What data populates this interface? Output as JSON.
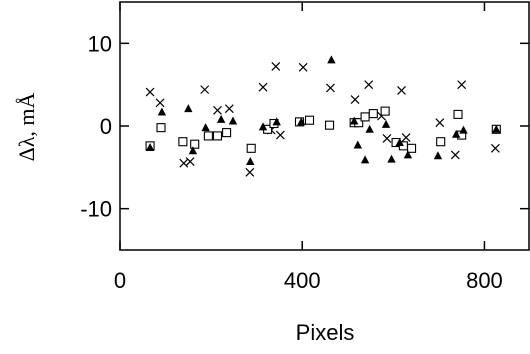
{
  "chart_data": {
    "type": "scatter",
    "title": "",
    "xlabel": "Pixels",
    "ylabel": "Δλ,  mÅ",
    "xlim": [
      0,
      900
    ],
    "ylim": [
      -15,
      15
    ],
    "xticks": [
      0,
      400,
      800
    ],
    "yticks": [
      -10,
      0,
      10
    ],
    "xtick_labels": [
      "0",
      "400",
      "800"
    ],
    "ytick_labels": [
      "-10",
      "0",
      "10"
    ],
    "grid": false,
    "series": [
      {
        "marker": "cross",
        "points": [
          [
            66,
            4.1
          ],
          [
            88,
            2.8
          ],
          [
            140,
            -4.5
          ],
          [
            154,
            -4.3
          ],
          [
            186,
            4.4
          ],
          [
            214,
            1.9
          ],
          [
            240,
            2.1
          ],
          [
            285,
            -5.6
          ],
          [
            314,
            4.7
          ],
          [
            342,
            7.2
          ],
          [
            332,
            -0.5
          ],
          [
            352,
            -1.1
          ],
          [
            402,
            7.1
          ],
          [
            462,
            4.6
          ],
          [
            516,
            3.2
          ],
          [
            546,
            5.0
          ],
          [
            574,
            1.2
          ],
          [
            586,
            -1.5
          ],
          [
            618,
            4.3
          ],
          [
            628,
            -1.4
          ],
          [
            702,
            0.4
          ],
          [
            736,
            -3.5
          ],
          [
            750,
            5.0
          ],
          [
            824,
            -2.7
          ]
        ]
      },
      {
        "marker": "square",
        "points": [
          [
            66,
            -2.4
          ],
          [
            90,
            -0.2
          ],
          [
            138,
            -1.9
          ],
          [
            164,
            -2.2
          ],
          [
            194,
            -1.2
          ],
          [
            214,
            -1.2
          ],
          [
            234,
            -0.8
          ],
          [
            288,
            -2.7
          ],
          [
            324,
            -0.4
          ],
          [
            338,
            0.3
          ],
          [
            394,
            0.5
          ],
          [
            416,
            0.7
          ],
          [
            460,
            0.1
          ],
          [
            514,
            0.4
          ],
          [
            524,
            0.4
          ],
          [
            538,
            1.1
          ],
          [
            556,
            1.5
          ],
          [
            582,
            1.8
          ],
          [
            606,
            -2.0
          ],
          [
            622,
            -2.4
          ],
          [
            640,
            -2.7
          ],
          [
            704,
            -1.9
          ],
          [
            742,
            1.4
          ],
          [
            750,
            -1.1
          ],
          [
            826,
            -0.4
          ]
        ]
      },
      {
        "marker": "triangle",
        "points": [
          [
            66,
            -2.6
          ],
          [
            92,
            1.7
          ],
          [
            150,
            2.1
          ],
          [
            160,
            -3.0
          ],
          [
            188,
            -0.2
          ],
          [
            222,
            0.8
          ],
          [
            248,
            0.6
          ],
          [
            286,
            -4.3
          ],
          [
            314,
            -0.1
          ],
          [
            344,
            0.5
          ],
          [
            398,
            0.5
          ],
          [
            464,
            8.0
          ],
          [
            514,
            0.6
          ],
          [
            522,
            -2.3
          ],
          [
            538,
            -4.1
          ],
          [
            548,
            -0.4
          ],
          [
            584,
            0.2
          ],
          [
            596,
            -4.0
          ],
          [
            614,
            -2.0
          ],
          [
            632,
            -3.5
          ],
          [
            698,
            -3.6
          ],
          [
            738,
            -1.0
          ],
          [
            754,
            -0.5
          ],
          [
            826,
            -0.4
          ]
        ]
      }
    ]
  }
}
